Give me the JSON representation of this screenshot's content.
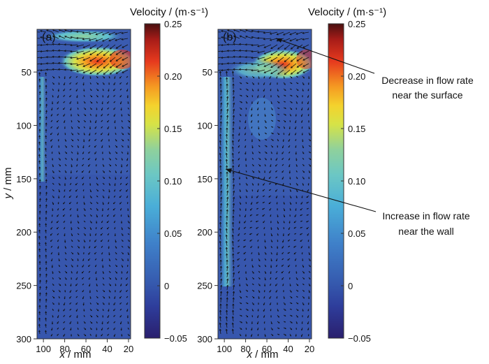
{
  "chart_data": [
    {
      "type": "heatmap",
      "panel_label": "(a)",
      "x_ticks": [
        100,
        80,
        60,
        40,
        20
      ],
      "y_ticks": [
        50,
        100,
        150,
        200,
        250,
        300
      ],
      "xlabel_var": "x",
      "xlabel_unit": " / mm",
      "ylabel_var": "y",
      "ylabel_unit": " / mm",
      "xlim": [
        106,
        18
      ],
      "ylim": [
        10,
        300
      ],
      "colorbar": {
        "title": "Velocity / (m·s⁻¹)",
        "range": [
          -0.05,
          0.25
        ],
        "ticks": [
          "0.25",
          "0.20",
          "0.15",
          "0.10",
          "0.05",
          "0",
          "−0.05"
        ]
      },
      "features": [
        {
          "description_value": "surface jet",
          "x": 40,
          "y": 48,
          "velocity": 0.22
        },
        {
          "description_value": "near-surface flow",
          "x": 70,
          "y": 17,
          "velocity": 0.1
        }
      ]
    },
    {
      "type": "heatmap",
      "panel_label": "(b)",
      "x_ticks": [
        100,
        80,
        60,
        40,
        20
      ],
      "y_ticks": [
        50,
        100,
        150,
        200,
        250,
        300
      ],
      "xlabel_var": "x",
      "xlabel_unit": " / mm",
      "xlim": [
        106,
        18
      ],
      "ylim": [
        10,
        300
      ],
      "colorbar": {
        "title": "Velocity / (m·s⁻¹)",
        "range": [
          -0.05,
          0.25
        ],
        "ticks": [
          "0.25",
          "0.20",
          "0.15",
          "0.10",
          "0.05",
          "0",
          "−0.05"
        ]
      },
      "annotations": [
        {
          "line1": "Decrease in flow rate",
          "line2": "near the surface",
          "x": 52,
          "y": 23
        },
        {
          "line1": "Increase in flow rate",
          "line2": "near the wall",
          "x": 102,
          "y": 142
        }
      ]
    }
  ],
  "colors": {
    "colormap": [
      "#2b2c8f",
      "#2f5bb2",
      "#3a73c3",
      "#4aa9d9",
      "#7fcfc2",
      "#d7e34a",
      "#f6a21c",
      "#e8321e",
      "#5c1212"
    ],
    "background": "#3a5bb0",
    "arrow": "#111111"
  }
}
